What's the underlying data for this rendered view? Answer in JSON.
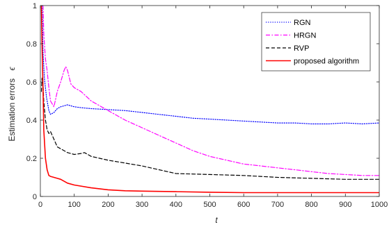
{
  "chart_data": {
    "type": "line",
    "title": "",
    "xlabel": "t",
    "ylabel": "Estimation errors",
    "ylabel_symbol": "ϵ",
    "xlim": [
      0,
      1000
    ],
    "ylim": [
      0,
      1
    ],
    "xticks": [
      0,
      100,
      200,
      300,
      400,
      500,
      600,
      700,
      800,
      900,
      1000
    ],
    "yticks": [
      0,
      0.2,
      0.4,
      0.6,
      0.8,
      1
    ],
    "ytick_labels": [
      "0",
      "0.2",
      "0.4",
      "0.6",
      "0.8",
      "1"
    ],
    "grid": false,
    "legend_position": "top-right",
    "series": [
      {
        "name": "RGN",
        "color": "#0000ff",
        "dash": "dotted",
        "x": [
          5,
          8,
          12,
          18,
          25,
          30,
          40,
          50,
          60,
          70,
          80,
          90,
          100,
          120,
          150,
          200,
          250,
          300,
          350,
          400,
          450,
          500,
          550,
          600,
          650,
          700,
          750,
          800,
          850,
          900,
          950,
          1000
        ],
        "y": [
          1.0,
          0.75,
          0.62,
          0.52,
          0.45,
          0.43,
          0.44,
          0.46,
          0.47,
          0.475,
          0.48,
          0.475,
          0.47,
          0.465,
          0.46,
          0.455,
          0.45,
          0.44,
          0.43,
          0.42,
          0.41,
          0.405,
          0.4,
          0.395,
          0.39,
          0.385,
          0.385,
          0.38,
          0.38,
          0.385,
          0.38,
          0.385
        ]
      },
      {
        "name": "HRGN",
        "color": "#ff00ff",
        "dash": "dashdot",
        "x": [
          8,
          10,
          15,
          20,
          25,
          30,
          40,
          50,
          60,
          70,
          75,
          80,
          90,
          100,
          120,
          150,
          200,
          250,
          300,
          350,
          400,
          450,
          500,
          550,
          600,
          650,
          700,
          750,
          800,
          850,
          900,
          950,
          1000
        ],
        "y": [
          1.0,
          0.85,
          0.72,
          0.66,
          0.57,
          0.5,
          0.47,
          0.55,
          0.6,
          0.66,
          0.68,
          0.66,
          0.59,
          0.57,
          0.55,
          0.5,
          0.45,
          0.4,
          0.36,
          0.32,
          0.28,
          0.24,
          0.21,
          0.19,
          0.17,
          0.16,
          0.15,
          0.14,
          0.13,
          0.12,
          0.115,
          0.11,
          0.11
        ]
      },
      {
        "name": "RVP",
        "color": "#000000",
        "dash": "dashed",
        "x": [
          3,
          5,
          8,
          10,
          15,
          20,
          25,
          30,
          40,
          50,
          60,
          80,
          100,
          120,
          130,
          150,
          200,
          250,
          300,
          350,
          400,
          500,
          600,
          700,
          800,
          900,
          1000
        ],
        "y": [
          0.55,
          0.62,
          0.58,
          0.5,
          0.4,
          0.35,
          0.33,
          0.34,
          0.3,
          0.26,
          0.25,
          0.23,
          0.22,
          0.225,
          0.23,
          0.21,
          0.19,
          0.175,
          0.16,
          0.14,
          0.12,
          0.115,
          0.11,
          0.1,
          0.095,
          0.09,
          0.09
        ]
      },
      {
        "name": "proposed algorithm",
        "color": "#ff0000",
        "dash": "solid",
        "x": [
          3,
          5,
          8,
          10,
          15,
          20,
          25,
          30,
          40,
          50,
          60,
          80,
          100,
          150,
          200,
          250,
          300,
          400,
          500,
          600,
          700,
          800,
          900,
          1000
        ],
        "y": [
          1.0,
          0.8,
          0.55,
          0.35,
          0.2,
          0.14,
          0.11,
          0.105,
          0.1,
          0.095,
          0.09,
          0.07,
          0.06,
          0.045,
          0.035,
          0.03,
          0.028,
          0.025,
          0.022,
          0.02,
          0.02,
          0.02,
          0.02,
          0.02
        ]
      }
    ]
  }
}
